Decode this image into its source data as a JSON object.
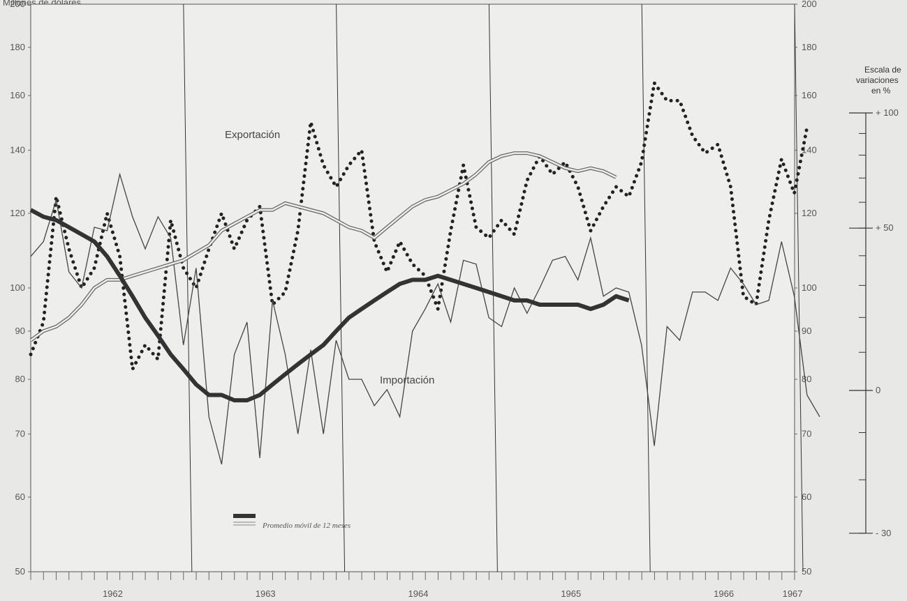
{
  "header": {
    "left_axis_title": "Millones de dólares",
    "scale_title": [
      "Escala de",
      "variaciones",
      "en %"
    ]
  },
  "chart_data": {
    "type": "line",
    "y_scale": "log",
    "ylim": [
      50,
      200
    ],
    "y_ticks": [
      50,
      60,
      70,
      80,
      90,
      100,
      120,
      140,
      160,
      180,
      200
    ],
    "x_ticks": [
      "1962",
      "1963",
      "1964",
      "1965",
      "1966",
      "1967"
    ],
    "x_range_months": [
      1962.0,
      1967.0
    ],
    "variation_scale": {
      "ticks": [
        {
          "label": "+ 100",
          "value": 100
        },
        {
          "label": "+ 50",
          "value": 50
        },
        {
          "label": "0",
          "value": 0
        },
        {
          "label": "- 30",
          "value": -30
        }
      ]
    },
    "annotations": {
      "exportacion": "Exportación",
      "importacion": "Importación",
      "legend": "Promedio móvil de 12 meses"
    },
    "series": [
      {
        "name": "Exportación",
        "style": "dotted",
        "start": 1962.0,
        "values": [
          85,
          92,
          125,
          110,
          100,
          105,
          120,
          108,
          82,
          87,
          84,
          118,
          105,
          100,
          110,
          120,
          110,
          118,
          122,
          96,
          99,
          115,
          150,
          135,
          128,
          135,
          140,
          112,
          104,
          112,
          106,
          103,
          95,
          115,
          135,
          116,
          113,
          118,
          114,
          130,
          138,
          132,
          136,
          128,
          115,
          122,
          128,
          125,
          136,
          165,
          158,
          158,
          145,
          139,
          142,
          128,
          98,
          96,
          118,
          137,
          126,
          148
        ],
        "step": 0.0833
      },
      {
        "name": "Importación",
        "style": "thin",
        "start": 1962.0,
        "values": [
          108,
          112,
          124,
          104,
          100,
          116,
          115,
          132,
          119,
          110,
          119,
          113,
          87,
          105,
          73,
          65,
          85,
          92,
          66,
          97,
          85,
          70,
          86,
          70,
          88,
          80,
          80,
          75,
          78,
          73,
          90,
          95,
          101,
          92,
          107,
          106,
          93,
          91,
          100,
          94,
          100,
          107,
          108,
          102,
          113,
          98,
          100,
          99,
          87,
          68,
          91,
          88,
          99,
          99,
          97,
          105,
          101,
          96,
          97,
          112,
          98,
          77,
          73
        ],
        "step": 0.0833
      },
      {
        "name": "Exportación (promedio móvil)",
        "style": "double",
        "start": 1962.0,
        "values": [
          88,
          90,
          91,
          93,
          96,
          100,
          102,
          102,
          103,
          104,
          105,
          106,
          107,
          109,
          111,
          115,
          117,
          119,
          121,
          121,
          123,
          122,
          121,
          120,
          118,
          116,
          115,
          113,
          116,
          119,
          122,
          124,
          125,
          127,
          129,
          132,
          136,
          138,
          139,
          139,
          138,
          136,
          134,
          133,
          134,
          133,
          131
        ],
        "step": 0.0833
      },
      {
        "name": "Importación (promedio móvil)",
        "style": "thick",
        "start": 1962.0,
        "values": [
          121,
          119,
          118,
          116,
          114,
          112,
          108,
          103,
          98,
          93,
          89,
          85,
          82,
          79,
          77,
          77,
          76,
          76,
          77,
          79,
          81,
          83,
          85,
          87,
          90,
          93,
          95,
          97,
          99,
          101,
          102,
          102,
          103,
          102,
          101,
          100,
          99,
          98,
          97,
          97,
          96,
          96,
          96,
          96,
          95,
          96,
          98,
          97
        ],
        "step": 0.0833
      }
    ]
  }
}
